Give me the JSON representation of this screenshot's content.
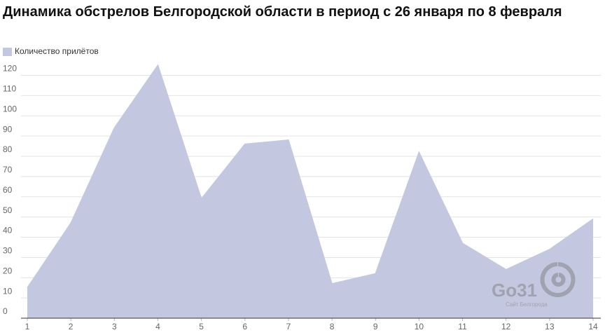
{
  "chart_data": {
    "type": "area",
    "title": "Динамика обстрелов Белгородской области в период с 26 января по 8 февраля",
    "x": [
      1,
      2,
      3,
      4,
      5,
      6,
      7,
      8,
      9,
      10,
      11,
      12,
      13,
      14
    ],
    "series": [
      {
        "name": "Количество прилётов",
        "color": "#c4c7e0",
        "values": [
          15,
          47,
          94,
          125,
          59,
          86,
          88,
          17,
          22,
          82,
          37,
          24,
          34,
          49
        ]
      }
    ],
    "xlim": [
      1,
      14
    ],
    "xticks": [
      1,
      2,
      3,
      4,
      5,
      6,
      7,
      8,
      9,
      10,
      11,
      12,
      13,
      14
    ],
    "ylim": [
      0,
      125
    ],
    "yticks": [
      0,
      10,
      20,
      30,
      40,
      50,
      60,
      70,
      80,
      90,
      100,
      110,
      120
    ],
    "grid": true,
    "legend": "top-left",
    "watermark": {
      "text": "Go31",
      "subtitle": "Сайт Белгорода"
    }
  }
}
